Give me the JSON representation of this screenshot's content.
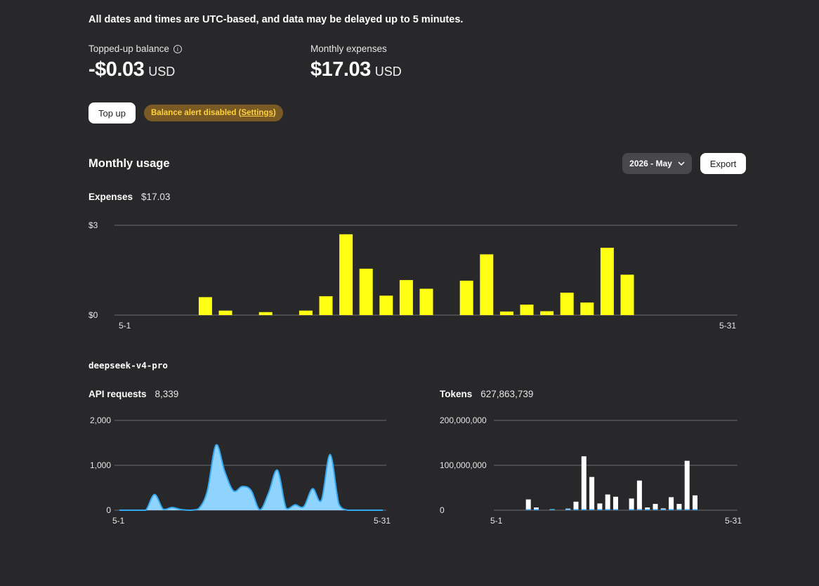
{
  "notice": "All dates and times are UTC-based, and data may be delayed up to 5 minutes.",
  "balance": {
    "label": "Topped-up balance",
    "info_icon": "info-circle-icon",
    "value": "-$0.03",
    "unit": "USD"
  },
  "monthly_expenses": {
    "label": "Monthly expenses",
    "value": "$17.03",
    "unit": "USD"
  },
  "actions": {
    "top_up_label": "Top up",
    "alert_prefix": "Balance alert disabled (",
    "alert_link": "Settings",
    "alert_suffix": ")"
  },
  "usage": {
    "title": "Monthly usage",
    "month_select": "2026 - May",
    "month_select_icon": "chevron-down-icon",
    "export_label": "Export"
  },
  "expenses_summary": {
    "label": "Expenses",
    "value": "$17.03"
  },
  "model": {
    "name": "deepseek-v4-pro"
  },
  "requests_summary": {
    "label": "API requests",
    "value": "8,339"
  },
  "tokens_summary": {
    "label": "Tokens",
    "value": "627,863,739"
  },
  "colors": {
    "background": "#28282b",
    "expense_bar": "#ffff14",
    "requests_fill": "#8fd3ff",
    "requests_stroke": "#35a8f0",
    "token_bar": "#ffffff",
    "alert_bg": "#7a5a24",
    "alert_text": "#ffd23c"
  },
  "chart_data": [
    {
      "type": "bar",
      "name": "Expenses",
      "x": [
        "5-1",
        "5-2",
        "5-3",
        "5-4",
        "5-5",
        "5-6",
        "5-7",
        "5-8",
        "5-9",
        "5-10",
        "5-11",
        "5-12",
        "5-13",
        "5-14",
        "5-15",
        "5-16",
        "5-17",
        "5-18",
        "5-19",
        "5-20",
        "5-21",
        "5-22",
        "5-23",
        "5-24",
        "5-25",
        "5-26",
        "5-27",
        "5-28",
        "5-29",
        "5-30",
        "5-31"
      ],
      "values": [
        0,
        0,
        0,
        0,
        0.6,
        0.15,
        0,
        0.1,
        0,
        0.15,
        0.63,
        2.7,
        1.55,
        0.65,
        1.17,
        0.88,
        0,
        1.15,
        2.03,
        0.12,
        0.35,
        0.13,
        0.75,
        0.42,
        2.25,
        1.35,
        0,
        0,
        0,
        0,
        0
      ],
      "x_tick_labels": [
        "5-1",
        "5-31"
      ],
      "y_tick_labels": [
        "$0",
        "$3"
      ],
      "ylim": [
        0,
        3
      ],
      "grid": true
    },
    {
      "type": "area",
      "name": "API requests",
      "x": [
        "5-1",
        "5-2",
        "5-3",
        "5-4",
        "5-5",
        "5-6",
        "5-7",
        "5-8",
        "5-9",
        "5-10",
        "5-11",
        "5-12",
        "5-13",
        "5-14",
        "5-15",
        "5-16",
        "5-17",
        "5-18",
        "5-19",
        "5-20",
        "5-21",
        "5-22",
        "5-23",
        "5-24",
        "5-25",
        "5-26",
        "5-27",
        "5-28",
        "5-29",
        "5-30",
        "5-31"
      ],
      "values": [
        0,
        0,
        0,
        0,
        350,
        20,
        60,
        15,
        0,
        30,
        420,
        1450,
        860,
        430,
        530,
        440,
        10,
        390,
        890,
        40,
        120,
        80,
        480,
        220,
        1240,
        140,
        0,
        0,
        0,
        0,
        0
      ],
      "x_tick_labels": [
        "5-1",
        "5-31"
      ],
      "y_tick_labels": [
        "0",
        "1,000",
        "2,000"
      ],
      "ylim": [
        0,
        2000
      ],
      "grid": true
    },
    {
      "type": "bar",
      "name": "Tokens",
      "x": [
        "5-1",
        "5-2",
        "5-3",
        "5-4",
        "5-5",
        "5-6",
        "5-7",
        "5-8",
        "5-9",
        "5-10",
        "5-11",
        "5-12",
        "5-13",
        "5-14",
        "5-15",
        "5-16",
        "5-17",
        "5-18",
        "5-19",
        "5-20",
        "5-21",
        "5-22",
        "5-23",
        "5-24",
        "5-25",
        "5-26",
        "5-27",
        "5-28",
        "5-29",
        "5-30",
        "5-31"
      ],
      "values": [
        0,
        0,
        0,
        0,
        24000000,
        6000000,
        0,
        2500000,
        0,
        3500000,
        19000000,
        120000000,
        74000000,
        15000000,
        35000000,
        30000000,
        0,
        26000000,
        66000000,
        6000000,
        14000000,
        4000000,
        29000000,
        14000000,
        110000000,
        33000000,
        0,
        0,
        0,
        0,
        0
      ],
      "x_tick_labels": [
        "5-1",
        "5-31"
      ],
      "y_tick_labels": [
        "0",
        "100,000,000",
        "200,000,000"
      ],
      "ylim": [
        0,
        200000000
      ],
      "grid": true
    }
  ]
}
